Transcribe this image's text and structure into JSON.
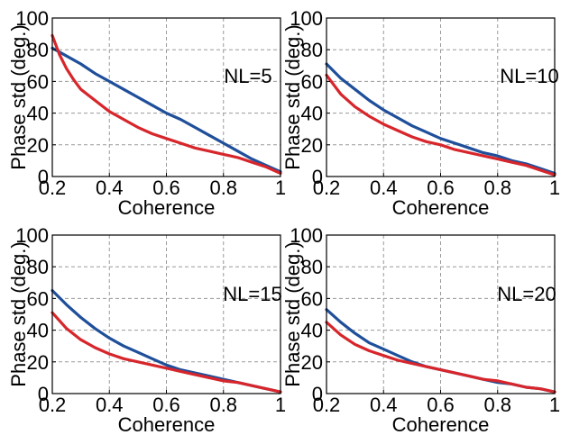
{
  "colors": {
    "red": "#d7262b",
    "blue": "#1f4f9a",
    "grid": "#9a9a9a",
    "frame": "#000000"
  },
  "chart_data": [
    {
      "type": "line",
      "annotation": "NL=5",
      "xlabel": "Coherence",
      "ylabel": "Phase std (deg.)",
      "xlim": [
        0.2,
        1
      ],
      "ylim": [
        0,
        100
      ],
      "xticks": [
        "0.2",
        "0.4",
        "0.6",
        "0.8",
        "1"
      ],
      "yticks": [
        "0",
        "20",
        "40",
        "60",
        "80",
        "100"
      ],
      "grid": true,
      "series": [
        {
          "color": "blue",
          "x": [
            0.2,
            0.25,
            0.3,
            0.35,
            0.4,
            0.45,
            0.5,
            0.55,
            0.6,
            0.65,
            0.7,
            0.75,
            0.8,
            0.85,
            0.9,
            0.95,
            1.0
          ],
          "values": [
            81,
            76,
            71,
            65,
            60,
            55,
            50,
            45,
            40,
            36,
            31,
            26,
            21,
            16,
            11,
            7,
            3
          ]
        },
        {
          "color": "red",
          "x": [
            0.2,
            0.225,
            0.25,
            0.275,
            0.3,
            0.35,
            0.4,
            0.45,
            0.5,
            0.55,
            0.6,
            0.65,
            0.7,
            0.75,
            0.8,
            0.85,
            0.9,
            0.95,
            1.0
          ],
          "values": [
            89,
            77,
            68,
            61,
            55,
            48,
            41,
            36,
            31,
            27,
            24,
            21,
            18,
            16,
            14,
            12,
            9,
            6,
            2
          ]
        }
      ]
    },
    {
      "type": "line",
      "annotation": "NL=10",
      "xlabel": "Coherence",
      "ylabel": "Phase std (deg.)",
      "xlim": [
        0.2,
        1
      ],
      "ylim": [
        0,
        100
      ],
      "xticks": [
        "0.2",
        "0.4",
        "0.6",
        "0.8",
        "1"
      ],
      "yticks": [
        "0",
        "20",
        "40",
        "60",
        "80",
        "100"
      ],
      "grid": true,
      "series": [
        {
          "color": "blue",
          "x": [
            0.2,
            0.25,
            0.3,
            0.35,
            0.4,
            0.45,
            0.5,
            0.55,
            0.6,
            0.65,
            0.7,
            0.75,
            0.8,
            0.85,
            0.9,
            0.95,
            1.0
          ],
          "values": [
            71,
            62,
            55,
            48,
            42,
            37,
            32,
            28,
            24,
            21,
            18,
            15,
            13,
            10,
            8,
            5,
            2
          ]
        },
        {
          "color": "red",
          "x": [
            0.2,
            0.25,
            0.3,
            0.35,
            0.4,
            0.45,
            0.5,
            0.55,
            0.6,
            0.65,
            0.7,
            0.75,
            0.8,
            0.85,
            0.9,
            0.95,
            1.0
          ],
          "values": [
            64,
            52,
            44,
            38,
            33,
            29,
            25,
            22,
            20,
            17,
            15,
            13,
            11,
            9,
            7,
            4,
            1
          ]
        }
      ]
    },
    {
      "type": "line",
      "annotation": "NL=15",
      "xlabel": "Coherence",
      "ylabel": "Phase std (deg.)",
      "xlim": [
        0.2,
        1
      ],
      "ylim": [
        0,
        100
      ],
      "xticks": [
        "0.2",
        "0.4",
        "0.6",
        "0.8",
        "1"
      ],
      "yticks": [
        "0",
        "20",
        "40",
        "60",
        "80",
        "100"
      ],
      "grid": true,
      "series": [
        {
          "color": "blue",
          "x": [
            0.2,
            0.25,
            0.3,
            0.35,
            0.4,
            0.45,
            0.5,
            0.55,
            0.6,
            0.65,
            0.7,
            0.75,
            0.8,
            0.85,
            0.9,
            0.95,
            1.0
          ],
          "values": [
            65,
            56,
            48,
            41,
            35,
            30,
            26,
            22,
            18,
            15,
            13,
            11,
            9,
            7,
            5,
            3,
            1
          ]
        },
        {
          "color": "red",
          "x": [
            0.2,
            0.25,
            0.3,
            0.35,
            0.4,
            0.45,
            0.5,
            0.55,
            0.6,
            0.65,
            0.7,
            0.75,
            0.8,
            0.85,
            0.9,
            0.95,
            1.0
          ],
          "values": [
            51,
            41,
            34,
            29,
            25,
            22,
            20,
            18,
            16,
            14,
            12,
            10,
            8,
            7,
            5,
            3,
            1
          ]
        }
      ]
    },
    {
      "type": "line",
      "annotation": "NL=20",
      "xlabel": "Coherence",
      "ylabel": "Phase std (deg.)",
      "xlim": [
        0.2,
        1
      ],
      "ylim": [
        0,
        100
      ],
      "xticks": [
        "0.2",
        "0.4",
        "0.6",
        "0.8",
        "1"
      ],
      "yticks": [
        "0",
        "20",
        "40",
        "60",
        "80",
        "100"
      ],
      "grid": true,
      "series": [
        {
          "color": "blue",
          "x": [
            0.2,
            0.25,
            0.3,
            0.35,
            0.4,
            0.45,
            0.5,
            0.55,
            0.6,
            0.65,
            0.7,
            0.75,
            0.8,
            0.85,
            0.9,
            0.95,
            1.0
          ],
          "values": [
            53,
            45,
            38,
            32,
            28,
            24,
            20,
            17,
            15,
            13,
            11,
            9,
            7,
            6,
            4,
            3,
            1
          ]
        },
        {
          "color": "red",
          "x": [
            0.2,
            0.25,
            0.3,
            0.35,
            0.4,
            0.45,
            0.5,
            0.55,
            0.6,
            0.65,
            0.7,
            0.75,
            0.8,
            0.85,
            0.9,
            0.95,
            1.0
          ],
          "values": [
            45,
            37,
            31,
            27,
            24,
            21,
            19,
            17,
            15,
            13,
            11,
            9,
            8,
            6,
            4,
            3,
            1
          ]
        }
      ]
    }
  ]
}
